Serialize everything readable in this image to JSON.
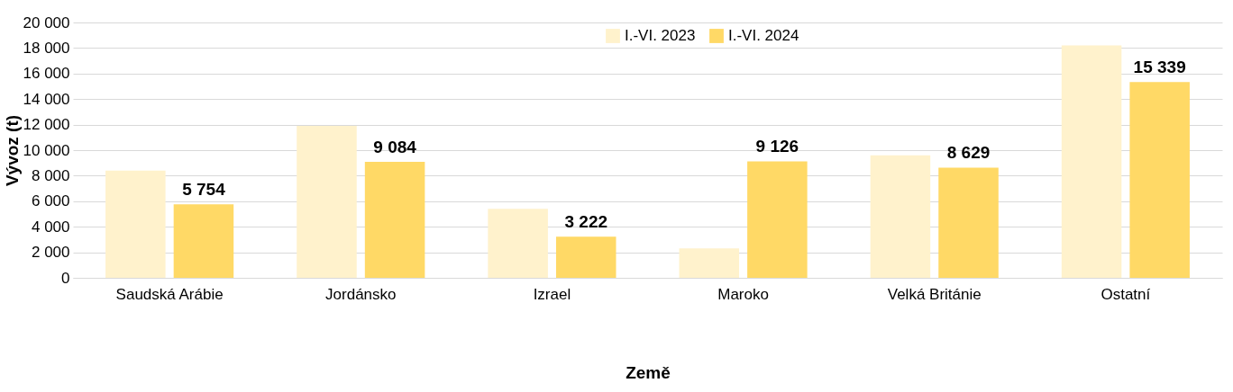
{
  "chart_data": {
    "type": "bar",
    "xlabel": "Země",
    "ylabel": "Vývoz (t)",
    "categories": [
      "Saudská Arábie",
      "Jordánsko",
      "Izrael",
      "Maroko",
      "Velká Británie",
      "Ostatní"
    ],
    "series": [
      {
        "name": "I.-VI. 2023",
        "color": "#fff2cc",
        "values": [
          8400,
          11900,
          5400,
          2300,
          9600,
          18200
        ]
      },
      {
        "name": "I.-VI. 2024",
        "color": "#ffd966",
        "values": [
          5754,
          9084,
          3222,
          9126,
          8629,
          15339
        ],
        "value_labels": [
          "5 754",
          "9 084",
          "3 222",
          "9 126",
          "8 629",
          "15 339"
        ]
      }
    ],
    "ylim": [
      0,
      20000
    ],
    "yticks": [
      0,
      {
        "value": 2000,
        "label": "2 000"
      },
      {
        "value": 4000,
        "label": "4 000"
      },
      {
        "value": 6000,
        "label": "6 000"
      },
      {
        "value": 8000,
        "label": "8 000"
      },
      {
        "value": 10000,
        "label": "10 000"
      },
      {
        "value": 12000,
        "label": "12 000"
      },
      {
        "value": 14000,
        "label": "14 000"
      },
      {
        "value": 16000,
        "label": "16 000"
      },
      {
        "value": 18000,
        "label": "18 000"
      },
      {
        "value": 20000,
        "label": "20 000"
      }
    ],
    "grid": "y",
    "legend": "top"
  }
}
